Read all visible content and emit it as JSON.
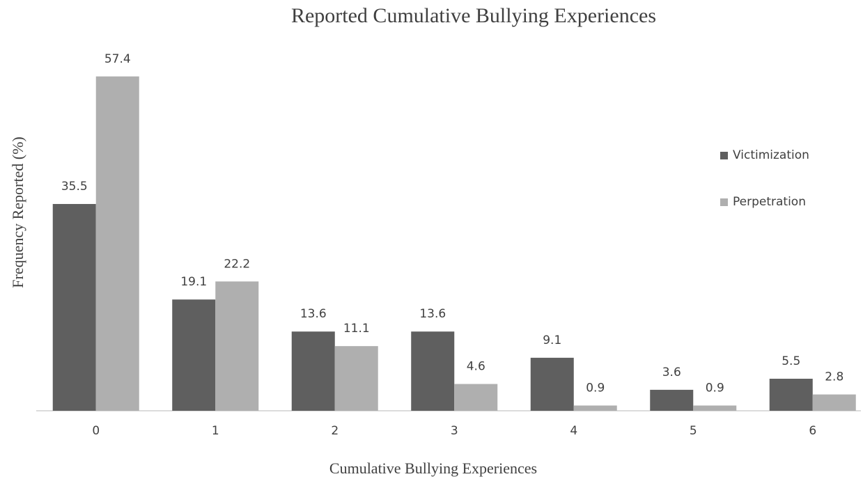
{
  "chart_data": {
    "type": "bar",
    "title": "Reported Cumulative Bullying Experiences",
    "x_label": "Cumulative Bullying Experiences",
    "y_label": "Frequency Reported (%)",
    "categories": [
      "0",
      "1",
      "2",
      "3",
      "4",
      "5",
      "6"
    ],
    "series": [
      {
        "name": "Victimization",
        "color": "#5f5f5f",
        "values": [
          35.5,
          19.1,
          13.6,
          13.6,
          9.1,
          3.6,
          5.5
        ]
      },
      {
        "name": "Perpetration",
        "color": "#afafaf",
        "values": [
          57.4,
          22.2,
          11.1,
          4.6,
          0.9,
          0.9,
          2.8
        ]
      }
    ],
    "ylim": [
      0,
      60
    ],
    "legend": "right"
  }
}
